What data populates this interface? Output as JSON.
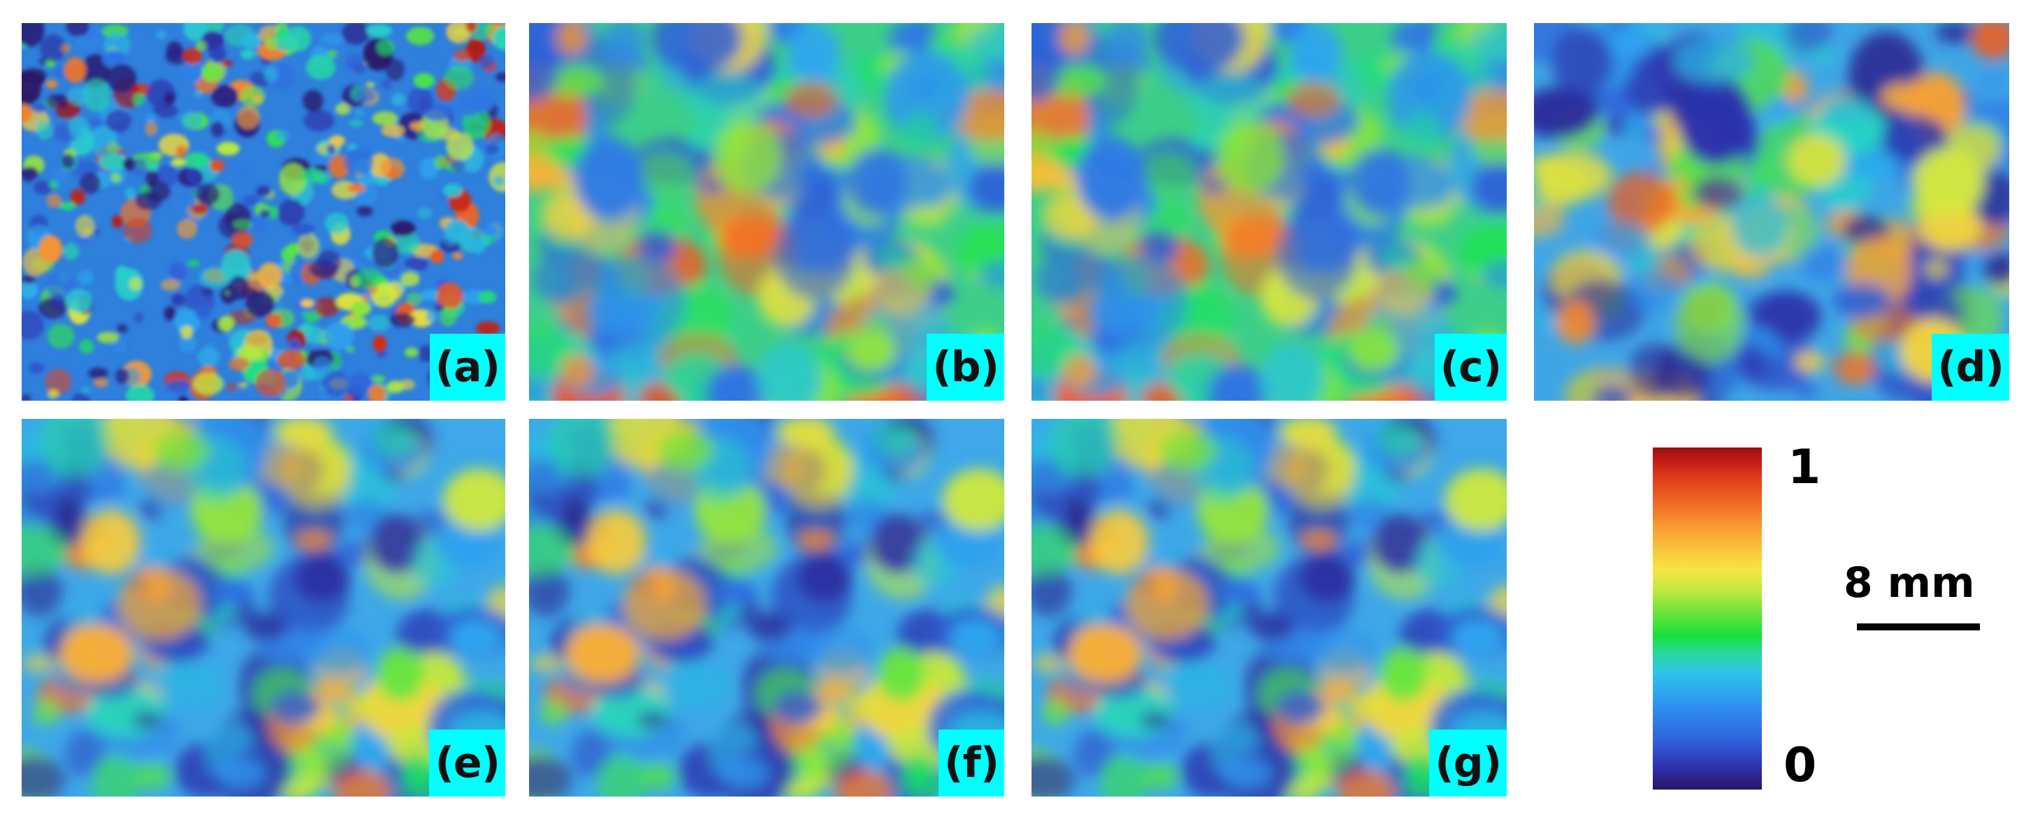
{
  "figure": {
    "panels": [
      {
        "label": "(a)"
      },
      {
        "label": "(b)"
      },
      {
        "label": "(c)"
      },
      {
        "label": "(d)"
      },
      {
        "label": "(e)"
      },
      {
        "label": "(f)"
      },
      {
        "label": "(g)"
      }
    ],
    "colorbar": {
      "max_label": "1",
      "min_label": "0",
      "colormap": "jet"
    },
    "scale_bar": {
      "label": "8 mm"
    }
  }
}
